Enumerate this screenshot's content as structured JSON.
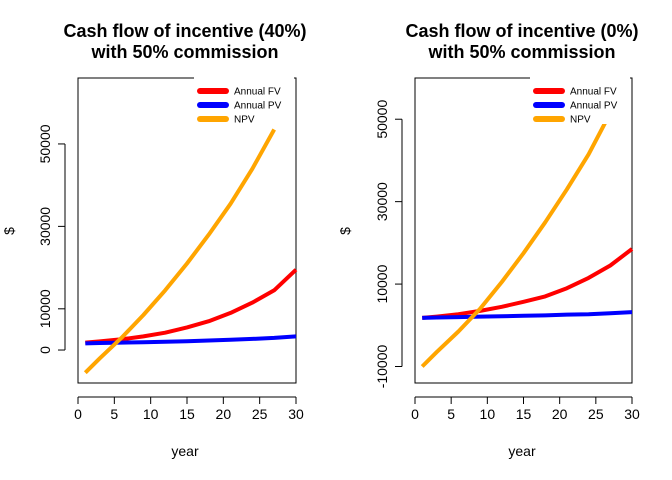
{
  "chart_data": [
    {
      "type": "line",
      "title_line1": "Cash flow of incentive (40%)",
      "title_line2": "with 50% commission",
      "xlabel": "year",
      "ylabel": "$",
      "xlim": [
        0,
        30
      ],
      "ylim": [
        -8000,
        66000
      ],
      "xticks": [
        0,
        5,
        10,
        15,
        20,
        25,
        30
      ],
      "yticks": [
        0,
        10000,
        30000,
        50000
      ],
      "x": [
        1,
        3,
        6,
        9,
        12,
        15,
        18,
        21,
        24,
        27,
        30
      ],
      "series": [
        {
          "name": "Annual FV",
          "color": "#ff0000",
          "x": [
            1,
            3,
            6,
            9,
            12,
            15,
            18,
            21,
            24,
            27,
            30
          ],
          "values": [
            1800,
            2100,
            2600,
            3300,
            4200,
            5500,
            7000,
            9000,
            11500,
            14500,
            19500
          ]
        },
        {
          "name": "Annual PV",
          "color": "#0000ff",
          "x": [
            1,
            3,
            6,
            9,
            12,
            15,
            18,
            21,
            24,
            27,
            30
          ],
          "values": [
            1600,
            1700,
            1800,
            1900,
            2000,
            2150,
            2300,
            2500,
            2700,
            2950,
            3300
          ]
        },
        {
          "name": "NPV",
          "color": "#ffa500",
          "x": [
            1,
            3,
            6,
            9,
            12,
            15,
            18,
            21,
            24,
            27
          ],
          "values": [
            -5500,
            -2000,
            3000,
            8500,
            14500,
            21000,
            28000,
            35500,
            44000,
            53500
          ]
        }
      ],
      "legend": "top-right"
    },
    {
      "type": "line",
      "title_line1": "Cash flow of incentive (0%)",
      "title_line2": "with 50% commission",
      "xlabel": "year",
      "ylabel": "$",
      "xlim": [
        0,
        30
      ],
      "ylim": [
        -14000,
        60000
      ],
      "xticks": [
        0,
        5,
        10,
        15,
        20,
        25,
        30
      ],
      "yticks": [
        -10000,
        10000,
        30000,
        50000
      ],
      "x": [
        1,
        3,
        6,
        9,
        12,
        15,
        18,
        21,
        24,
        27,
        30
      ],
      "series": [
        {
          "name": "Annual FV",
          "color": "#ff0000",
          "x": [
            1,
            3,
            6,
            9,
            12,
            15,
            18,
            21,
            24,
            27,
            30
          ],
          "values": [
            1800,
            2100,
            2700,
            3500,
            4500,
            5700,
            7000,
            9000,
            11500,
            14500,
            18500
          ]
        },
        {
          "name": "Annual PV",
          "color": "#0000ff",
          "x": [
            1,
            3,
            6,
            9,
            12,
            15,
            18,
            21,
            24,
            27,
            30
          ],
          "values": [
            1800,
            1900,
            2000,
            2100,
            2200,
            2300,
            2400,
            2600,
            2700,
            2900,
            3200
          ]
        },
        {
          "name": "NPV",
          "color": "#ffa500",
          "x": [
            1,
            3,
            6,
            9,
            12,
            15,
            18,
            21,
            24,
            27
          ],
          "values": [
            -10000,
            -6500,
            -1500,
            4000,
            10500,
            17500,
            25000,
            33000,
            41500,
            51500
          ]
        }
      ],
      "legend": "top-right"
    }
  ]
}
